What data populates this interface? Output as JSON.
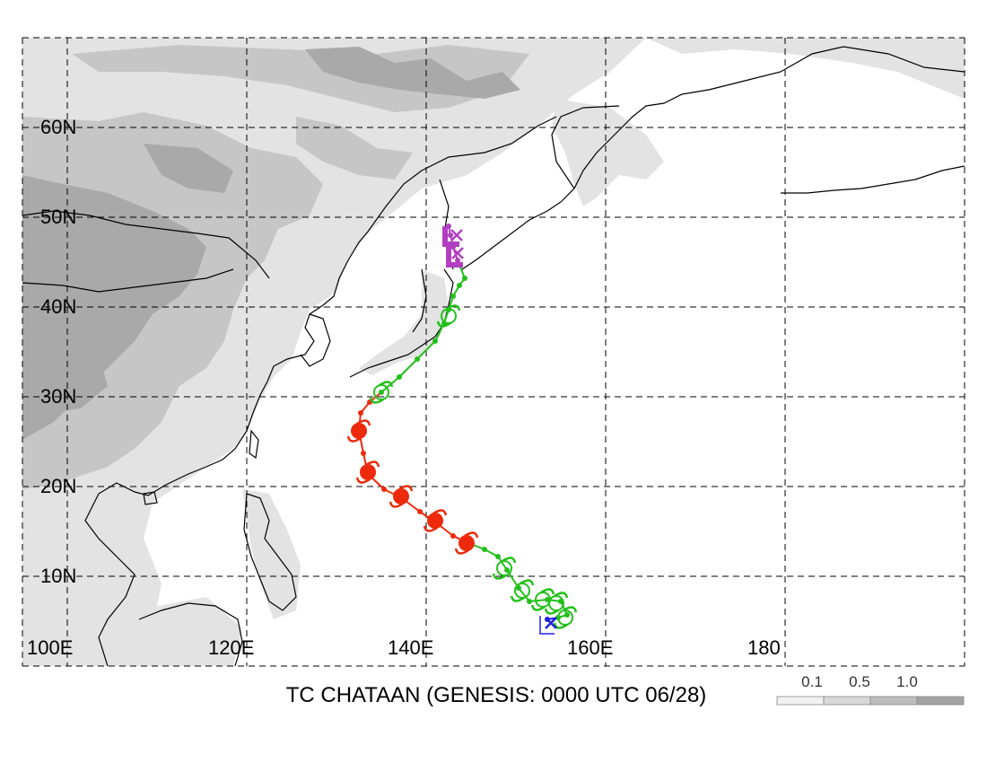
{
  "title": "TC CHATAAN (GENESIS: 0000 UTC 06/28)",
  "lat_labels": [
    "60N",
    "50N",
    "40N",
    "30N",
    "20N",
    "10N"
  ],
  "lon_labels": [
    "100E",
    "120E",
    "140E",
    "160E",
    "180"
  ],
  "legend": {
    "labels": [
      "0.1",
      "0.5",
      "1.0"
    ],
    "colors": [
      "#f2f2f2",
      "#d8d8d8",
      "#bdbdbd",
      "#a3a3a3"
    ]
  },
  "colors": {
    "land_light": "#e3e3e3",
    "land_mid": "#c6c6c6",
    "land_dark": "#a9a9a9",
    "track_green": "#22c01a",
    "track_red": "#ee2a0c",
    "track_magenta": "#b23fc2",
    "track_blue": "#2020e0"
  }
}
